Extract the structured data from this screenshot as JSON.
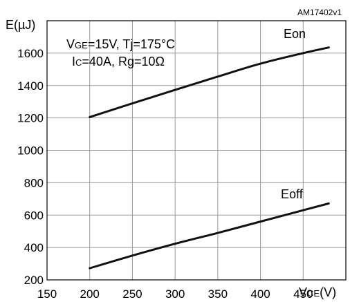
{
  "figure_id": "AM17402v1",
  "chart_data": {
    "type": "line",
    "y_axis_label": "E(µJ)",
    "x_axis_label": {
      "main": "V",
      "sub": "CE",
      "unit": "(V)"
    },
    "conditions": {
      "line1": {
        "a": "V",
        "a_sub": "GE",
        "b": "=15V, Tj=175°C"
      },
      "line2": {
        "a": "I",
        "a_sub": "C",
        "b": "=40A,  Rg=10Ω"
      }
    },
    "xlim": [
      150,
      500
    ],
    "ylim": [
      200,
      1800
    ],
    "x_ticks": [
      150,
      200,
      250,
      300,
      350,
      400,
      450
    ],
    "x_tick_labels": [
      "150",
      "200",
      "250",
      "300",
      "350",
      "400",
      "450"
    ],
    "y_ticks": [
      200,
      400,
      600,
      800,
      1000,
      1200,
      1400,
      1600
    ],
    "y_tick_labels": [
      "200",
      "400",
      "600",
      "800",
      "1000",
      "1200",
      "1400",
      "1600"
    ],
    "grid": true,
    "series": [
      {
        "name": "Eon",
        "x": [
          200,
          250,
          300,
          350,
          400,
          450,
          480
        ],
        "y": [
          1205,
          1290,
          1373,
          1455,
          1535,
          1600,
          1635
        ]
      },
      {
        "name": "Eoff",
        "x": [
          200,
          250,
          300,
          350,
          400,
          450,
          480
        ],
        "y": [
          272,
          350,
          423,
          490,
          560,
          630,
          672
        ]
      }
    ]
  }
}
